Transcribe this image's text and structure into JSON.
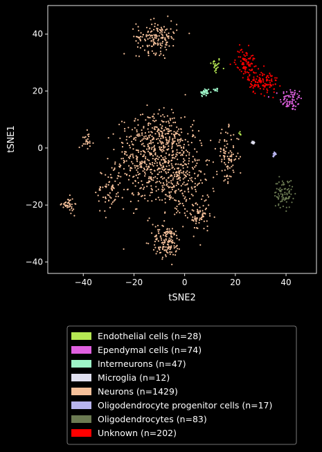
{
  "chart_data": {
    "type": "scatter",
    "title": "",
    "xlabel": "tSNE2",
    "ylabel": "tSNE1",
    "xlim": [
      -54,
      52
    ],
    "ylim": [
      -44,
      50
    ],
    "xticks": [
      -40,
      -20,
      0,
      20,
      40
    ],
    "yticks": [
      -40,
      -20,
      0,
      20,
      40
    ],
    "xtick_labels": [
      "−40",
      "−20",
      "0",
      "20",
      "40"
    ],
    "ytick_labels": [
      "−40",
      "−20",
      "0",
      "20",
      "40"
    ],
    "grid": false,
    "legend_position": "below",
    "background": "#000000",
    "series": [
      {
        "name": "Endothelial cells (n=28)",
        "color": "#b5e853",
        "n": 28,
        "clusters": [
          {
            "cx": 12,
            "cy": 29,
            "sx": 1.2,
            "sy": 1.5,
            "n": 22
          },
          {
            "cx": 22,
            "cy": 5,
            "sx": 0.3,
            "sy": 0.5,
            "n": 6
          }
        ]
      },
      {
        "name": "Ependymal cells (n=74)",
        "color": "#e060e0",
        "n": 74,
        "clusters": [
          {
            "cx": 42,
            "cy": 17,
            "sx": 2.2,
            "sy": 2.0,
            "n": 74
          }
        ]
      },
      {
        "name": "Interneurons (n=47)",
        "color": "#9ef5c8",
        "n": 47,
        "clusters": [
          {
            "cx": 8,
            "cy": 19.5,
            "sx": 1.0,
            "sy": 0.8,
            "n": 38
          },
          {
            "cx": 12.5,
            "cy": 20.5,
            "sx": 0.5,
            "sy": 0.3,
            "n": 9
          }
        ]
      },
      {
        "name": "Microglia (n=12)",
        "color": "#e0e0f0",
        "n": 12,
        "clusters": [
          {
            "cx": 27,
            "cy": 2,
            "sx": 0.4,
            "sy": 0.4,
            "n": 12
          }
        ]
      },
      {
        "name": "Neurons (n=1429)",
        "color": "#f5c09a",
        "n": 1429,
        "clusters": [
          {
            "cx": -14,
            "cy": -4,
            "sx": 6.5,
            "sy": 7.5,
            "n": 430
          },
          {
            "cx": -2,
            "cy": -10,
            "sx": 6.0,
            "sy": 8.0,
            "n": 300
          },
          {
            "cx": -8,
            "cy": 5,
            "sx": 5.0,
            "sy": 4.0,
            "n": 120
          },
          {
            "cx": -7,
            "cy": -33,
            "sx": 3.0,
            "sy": 2.8,
            "n": 140
          },
          {
            "cx": -11,
            "cy": 39,
            "sx": 4.0,
            "sy": 2.8,
            "n": 160
          },
          {
            "cx": 17,
            "cy": -3,
            "sx": 2.2,
            "sy": 4.5,
            "n": 90
          },
          {
            "cx": -30,
            "cy": -15,
            "sx": 2.5,
            "sy": 4.0,
            "n": 60
          },
          {
            "cx": -46,
            "cy": -20,
            "sx": 1.2,
            "sy": 1.3,
            "n": 40
          },
          {
            "cx": -38,
            "cy": 3,
            "sx": 1.2,
            "sy": 1.5,
            "n": 25
          },
          {
            "cx": 6,
            "cy": -24,
            "sx": 2.0,
            "sy": 3.0,
            "n": 64
          }
        ]
      },
      {
        "name": "Oligodendrocyte progenitor cells (n=17)",
        "color": "#b8b4ee",
        "n": 17,
        "clusters": [
          {
            "cx": 35.5,
            "cy": -2,
            "sx": 0.4,
            "sy": 0.4,
            "n": 17
          }
        ]
      },
      {
        "name": "Oligodendrocytes (n=83)",
        "color": "#6b7a52",
        "n": 83,
        "clusters": [
          {
            "cx": 39,
            "cy": -16,
            "sx": 1.8,
            "sy": 2.5,
            "n": 83
          }
        ]
      },
      {
        "name": "Unknown (n=202)",
        "color": "#ff0000",
        "n": 202,
        "clusters": [
          {
            "cx": 24,
            "cy": 30,
            "sx": 2.0,
            "sy": 2.5,
            "n": 90
          },
          {
            "cx": 31,
            "cy": 23,
            "sx": 3.0,
            "sy": 2.0,
            "n": 112
          }
        ]
      }
    ]
  }
}
